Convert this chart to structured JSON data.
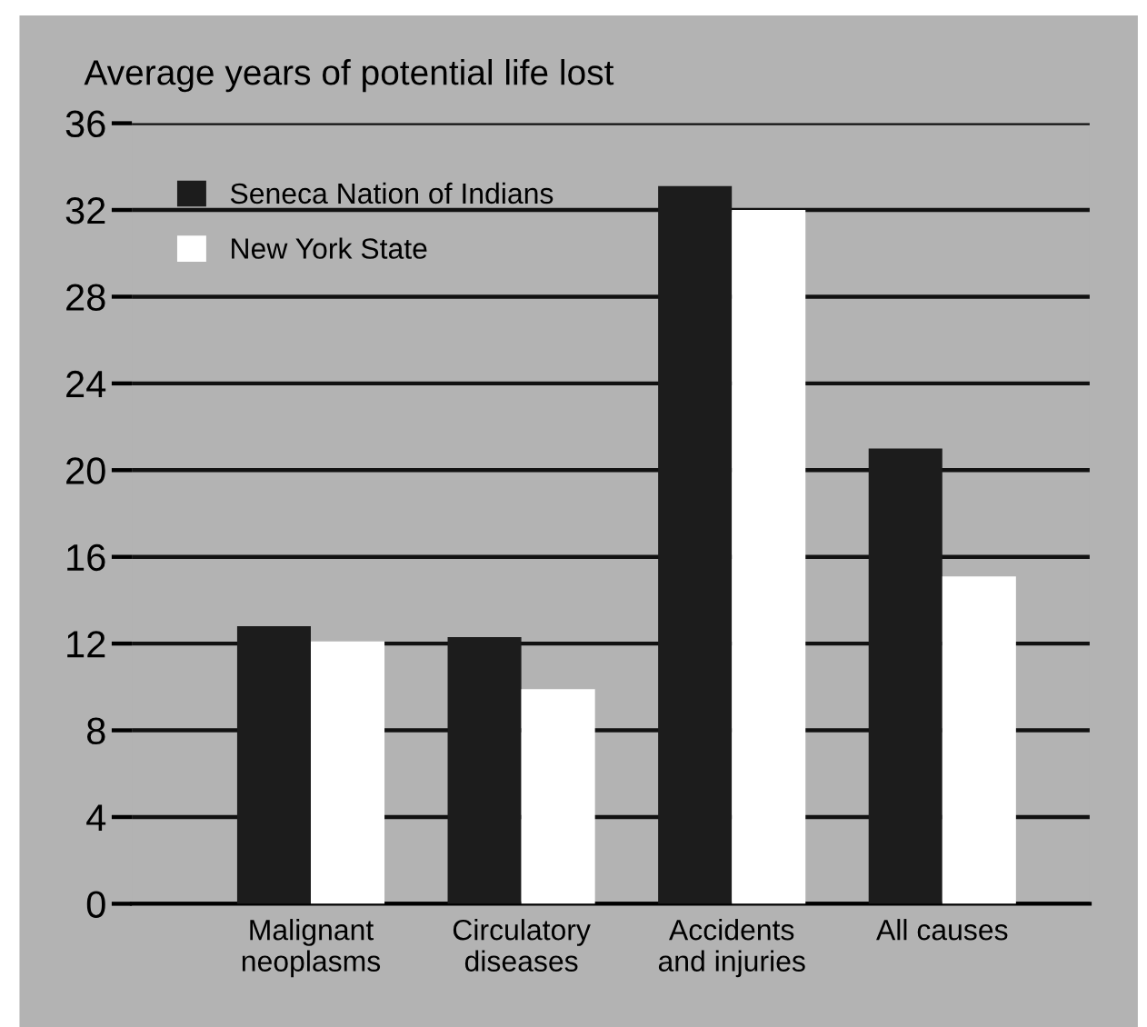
{
  "chart_data": {
    "type": "bar",
    "ylabel": "Average years of potential life lost",
    "categories": [
      "Malignant\nneoplasms",
      "Circulatory\ndiseases",
      "Accidents\nand injuries",
      "All causes"
    ],
    "series": [
      {
        "name": "Seneca Nation of Indians",
        "color": "#1c1c1c",
        "values": [
          12.8,
          12.3,
          33.1,
          21.0
        ]
      },
      {
        "name": "New York State",
        "color": "#ffffff",
        "values": [
          12.1,
          9.9,
          32.0,
          15.1
        ]
      }
    ],
    "ylim": [
      0,
      36
    ],
    "yticks": [
      0,
      4,
      8,
      12,
      16,
      20,
      24,
      28,
      32,
      36
    ],
    "grid": "y",
    "legend": "top left"
  }
}
